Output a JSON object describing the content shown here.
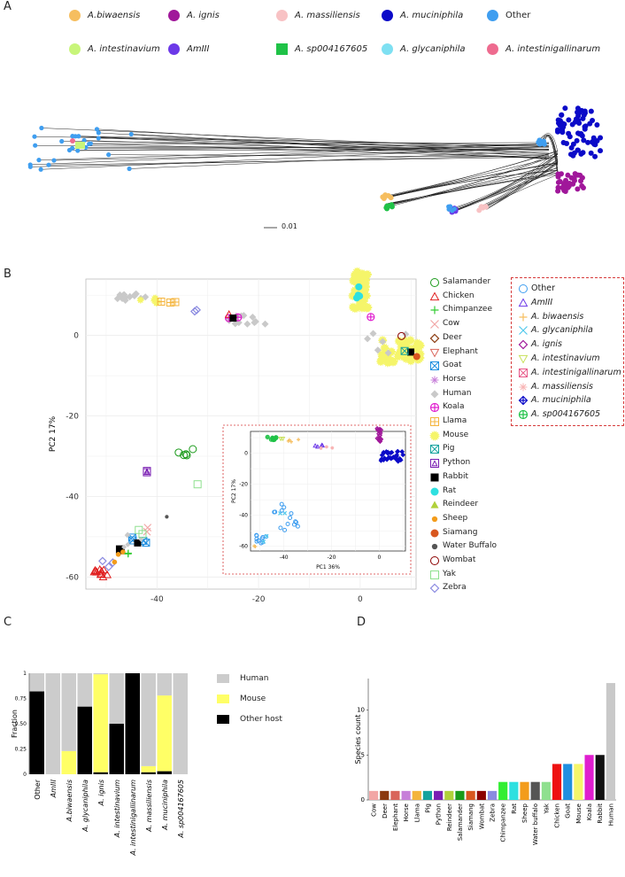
{
  "panels": {
    "a": "A",
    "b": "B",
    "c": "C",
    "d": "D"
  },
  "legendA": [
    {
      "label": "A.biwaensis",
      "color": "#f6be5f",
      "shape": "circle"
    },
    {
      "label": "A. ignis",
      "color": "#a0179a",
      "shape": "circle"
    },
    {
      "label": "A. massiliensis",
      "color": "#f8c2c4",
      "shape": "circle"
    },
    {
      "label": "A. muciniphila",
      "color": "#0b0ac8",
      "shape": "circle"
    },
    {
      "label": "Other",
      "color": "#3f9ef0",
      "shape": "circle"
    },
    {
      "label": "A. intestinavium",
      "color": "#c8f57a",
      "shape": "circle"
    },
    {
      "label": "AmIII",
      "color": "#6c39e8",
      "shape": "circle"
    },
    {
      "label": "A. sp004167605",
      "color": "#1fc247",
      "shape": "square"
    },
    {
      "label": "A. glycaniphila",
      "color": "#7ee0f2",
      "shape": "circle"
    },
    {
      "label": "A. intestinigallinarum",
      "color": "#ee6b8f",
      "shape": "circle"
    }
  ],
  "tree_scale": "0.01",
  "chart_data": [
    {
      "type": "scatter",
      "panel": "B",
      "xlabel": "PC1 36%",
      "ylabel": "PC2 17%",
      "xticks": [
        -40,
        -20,
        0
      ],
      "yticks": [
        0,
        -20,
        -40,
        -60
      ],
      "xlim": [
        -54,
        11
      ],
      "ylim": [
        -63,
        14
      ],
      "grid": true,
      "host_legend": [
        {
          "label": "Salamander",
          "color": "#1a9a1a",
          "marker": "o"
        },
        {
          "label": "Chicken",
          "color": "#e02020",
          "marker": "tri"
        },
        {
          "label": "Chimpanzee",
          "color": "#33cc33",
          "marker": "+"
        },
        {
          "label": "Cow",
          "color": "#f2a6a6",
          "marker": "x"
        },
        {
          "label": "Deer",
          "color": "#8b3a0e",
          "marker": "diamond"
        },
        {
          "label": "Elephant",
          "color": "#d9655b",
          "marker": "tri-down"
        },
        {
          "label": "Goat",
          "color": "#1f8fe0",
          "marker": "boxx"
        },
        {
          "label": "Horse",
          "color": "#c77fd9",
          "marker": "star"
        },
        {
          "label": "Human",
          "color": "#c9c9c9",
          "marker": "diamond-fill"
        },
        {
          "label": "Koala",
          "color": "#e01ecf",
          "marker": "circle-plus"
        },
        {
          "label": "Llama",
          "color": "#f4b43c",
          "marker": "hash"
        },
        {
          "label": "Mouse",
          "color": "#f5f56a",
          "marker": "sun"
        },
        {
          "label": "Pig",
          "color": "#16a39e",
          "marker": "boxx"
        },
        {
          "label": "Python",
          "color": "#7a1fb3",
          "marker": "boxtri"
        },
        {
          "label": "Rabbit",
          "color": "#000000",
          "marker": "square"
        },
        {
          "label": "Rat",
          "color": "#2ee0e0",
          "marker": "circle"
        },
        {
          "label": "Reindeer",
          "color": "#b0d13b",
          "marker": "tri-fill"
        },
        {
          "label": "Sheep",
          "color": "#f39c1b",
          "marker": "dot"
        },
        {
          "label": "Siamang",
          "color": "#d8571f",
          "marker": "circle"
        },
        {
          "label": "Water Buffalo",
          "color": "#555555",
          "marker": "dot"
        },
        {
          "label": "Wombat",
          "color": "#8b0000",
          "marker": "o"
        },
        {
          "label": "Yak",
          "color": "#8fe08f",
          "marker": "square-open"
        },
        {
          "label": "Zebra",
          "color": "#8a8ae0",
          "marker": "diamond"
        }
      ],
      "species_legend": [
        {
          "label": "Other",
          "color": "#3f9ef0",
          "marker": "o"
        },
        {
          "label": "AmIII",
          "color": "#6c39e8",
          "marker": "tri"
        },
        {
          "label": "A. biwaensis",
          "color": "#f6be5f",
          "marker": "+"
        },
        {
          "label": "A. glycaniphila",
          "color": "#52c9ec",
          "marker": "x"
        },
        {
          "label": "A. ignis",
          "color": "#a0179a",
          "marker": "diamond"
        },
        {
          "label": "A. intestinavium",
          "color": "#c8e05a",
          "marker": "tri-down"
        },
        {
          "label": "A. intestinigallinarum",
          "color": "#e85a8a",
          "marker": "boxx"
        },
        {
          "label": "A. massiliensis",
          "color": "#f8b3b3",
          "marker": "star"
        },
        {
          "label": "A. muciniphila",
          "color": "#0b0ac8",
          "marker": "diamond-plus"
        },
        {
          "label": "A. sp004167605",
          "color": "#1fc247",
          "marker": "circle-plus"
        }
      ],
      "inset": {
        "xlabel": "PC1 36%",
        "ylabel": "PC2 17%",
        "xticks": [
          -40,
          -20,
          0
        ],
        "yticks": [
          0,
          -20,
          -40,
          -60
        ],
        "xlim": [
          -54,
          11
        ],
        "ylim": [
          -63,
          14
        ]
      }
    },
    {
      "type": "bar",
      "panel": "C",
      "stacked": true,
      "ylabel": "Fraction",
      "yticks": [
        "0",
        "0.25",
        "0.50",
        "0.75",
        "1"
      ],
      "ylim": [
        0,
        1
      ],
      "categories": [
        "Other",
        "AmIII",
        "A.biwaensis",
        "A. glycaniphila",
        "A. ignis",
        "A. intestinavium",
        "A. intestinigallinarum",
        "A. massiliensis",
        "A. muciniphila",
        "A. sp004167605"
      ],
      "series": [
        {
          "name": "Other host",
          "color": "#000000",
          "values": [
            0.82,
            0,
            0,
            0.67,
            0.02,
            0.5,
            1.0,
            0.02,
            0.03,
            0
          ]
        },
        {
          "name": "Mouse",
          "color": "#ffff66",
          "values": [
            0,
            0,
            0.23,
            0,
            0.97,
            0,
            0,
            0.06,
            0.75,
            0
          ]
        },
        {
          "name": "Human",
          "color": "#cccccc",
          "values": [
            0.18,
            1.0,
            0.77,
            0.33,
            0.01,
            0.5,
            0,
            0.92,
            0.22,
            1.0
          ]
        }
      ],
      "legend_order": [
        "Human",
        "Mouse",
        "Other host"
      ]
    },
    {
      "type": "bar",
      "panel": "D",
      "ylabel": "Species count",
      "yticks": [
        0,
        5,
        10
      ],
      "ylim": [
        0,
        13.5
      ],
      "categories": [
        "Cow",
        "Deer",
        "Elephant",
        "Horse",
        "Llama",
        "Pig",
        "Python",
        "Reindeer",
        "Salamander",
        "Siamang",
        "Wombat",
        "Zebra",
        "Chimpanzee",
        "Rat",
        "Sheep",
        "Water buffalo",
        "Yak",
        "Chicken",
        "Goat",
        "Mouse",
        "Koala",
        "Rabbit",
        "Human"
      ],
      "values": [
        1,
        1,
        1,
        1,
        1,
        1,
        1,
        1,
        1,
        1,
        1,
        1,
        2,
        2,
        2,
        2,
        2,
        4,
        4,
        4,
        5,
        5,
        13
      ],
      "colors": [
        "#f2a6a6",
        "#8b3a0e",
        "#d9655b",
        "#c77fd9",
        "#f4b43c",
        "#16a39e",
        "#7a1fb3",
        "#b0d13b",
        "#1a9a1a",
        "#d8571f",
        "#8b0000",
        "#8a8ae0",
        "#33ee33",
        "#2ee0e0",
        "#f39c1b",
        "#555555",
        "#8fe08f",
        "#ee1111",
        "#1f8fe0",
        "#f5f56a",
        "#e01ecf",
        "#111111",
        "#c9c9c9"
      ]
    }
  ]
}
